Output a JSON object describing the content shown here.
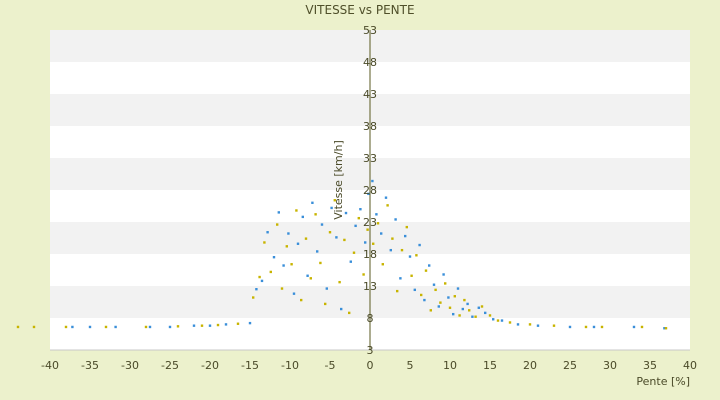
{
  "chart_data": {
    "type": "scatter",
    "title": "VITESSE vs PENTE",
    "xlabel": "Pente [%]",
    "ylabel": "Vitesse [km/h]",
    "xlim": [
      -40,
      40
    ],
    "ylim": [
      3,
      53
    ],
    "x_ticks": [
      -40,
      -35,
      -30,
      -25,
      -20,
      -15,
      -10,
      -5,
      0,
      5,
      10,
      15,
      20,
      25,
      30,
      35,
      40
    ],
    "y_ticks": [
      3,
      8,
      13,
      18,
      23,
      28,
      33,
      38,
      43,
      48,
      53
    ],
    "grid": "horizontal bands",
    "legend": "none",
    "colors": {
      "series_1": "#3a8fd9",
      "series_2": "#c8b400",
      "band_alt": "#f2f2f2",
      "plot_bg": "#ffffff",
      "axis": "#5a5a20"
    },
    "series": [
      {
        "points": [
          [
            -37.2,
            6.6
          ],
          [
            -35,
            6.6
          ],
          [
            -31.8,
            6.6
          ],
          [
            -27.5,
            6.6
          ],
          [
            -25,
            6.6
          ],
          [
            -22,
            6.8
          ],
          [
            -20,
            6.8
          ],
          [
            -18,
            7.0
          ],
          [
            -15,
            7.2
          ],
          [
            -14.2,
            12.5
          ],
          [
            -13.5,
            13.8
          ],
          [
            -12.8,
            21.4
          ],
          [
            -12,
            17.5
          ],
          [
            -11.4,
            24.5
          ],
          [
            -10.8,
            16.2
          ],
          [
            -10.2,
            21.2
          ],
          [
            -9.5,
            11.8
          ],
          [
            -9,
            19.6
          ],
          [
            -8.4,
            23.8
          ],
          [
            -7.8,
            14.6
          ],
          [
            -7.2,
            26.0
          ],
          [
            -6.6,
            18.4
          ],
          [
            -6,
            22.6
          ],
          [
            -5.4,
            12.6
          ],
          [
            -4.8,
            25.2
          ],
          [
            -4.2,
            20.6
          ],
          [
            -3.6,
            9.4
          ],
          [
            -3,
            24.4
          ],
          [
            -2.4,
            16.8
          ],
          [
            -1.8,
            22.4
          ],
          [
            -1.2,
            25.0
          ],
          [
            -0.6,
            19.8
          ],
          [
            -0.2,
            27.4
          ],
          [
            0.3,
            29.4
          ],
          [
            0.8,
            24.2
          ],
          [
            1.4,
            21.2
          ],
          [
            2,
            26.8
          ],
          [
            2.6,
            18.6
          ],
          [
            3.2,
            23.4
          ],
          [
            3.8,
            14.2
          ],
          [
            4.4,
            20.8
          ],
          [
            5,
            17.6
          ],
          [
            5.6,
            12.4
          ],
          [
            6.2,
            19.4
          ],
          [
            6.8,
            10.8
          ],
          [
            7.4,
            16.2
          ],
          [
            8,
            13.2
          ],
          [
            8.6,
            9.8
          ],
          [
            9.2,
            14.8
          ],
          [
            9.8,
            11.2
          ],
          [
            10.4,
            8.6
          ],
          [
            11,
            12.6
          ],
          [
            11.6,
            9.4
          ],
          [
            12.2,
            10.2
          ],
          [
            12.8,
            8.2
          ],
          [
            13.6,
            9.6
          ],
          [
            14.4,
            8.8
          ],
          [
            15.4,
            7.8
          ],
          [
            16.5,
            7.6
          ],
          [
            18.5,
            7.0
          ],
          [
            21,
            6.8
          ],
          [
            25,
            6.6
          ],
          [
            28,
            6.6
          ],
          [
            33,
            6.6
          ],
          [
            36.8,
            6.4
          ]
        ]
      },
      {
        "points": [
          [
            -44,
            6.6
          ],
          [
            -42,
            6.6
          ],
          [
            -38,
            6.6
          ],
          [
            -33,
            6.6
          ],
          [
            -28,
            6.6
          ],
          [
            -24,
            6.7
          ],
          [
            -21,
            6.8
          ],
          [
            -19,
            6.9
          ],
          [
            -16.5,
            7.1
          ],
          [
            -14.6,
            11.2
          ],
          [
            -13.8,
            14.4
          ],
          [
            -13.2,
            19.8
          ],
          [
            -12.4,
            15.2
          ],
          [
            -11.6,
            22.6
          ],
          [
            -11,
            12.6
          ],
          [
            -10.4,
            19.2
          ],
          [
            -9.8,
            16.4
          ],
          [
            -9.2,
            24.8
          ],
          [
            -8.6,
            10.8
          ],
          [
            -8,
            20.4
          ],
          [
            -7.4,
            14.2
          ],
          [
            -6.8,
            24.2
          ],
          [
            -6.2,
            16.6
          ],
          [
            -5.6,
            10.2
          ],
          [
            -5,
            21.4
          ],
          [
            -4.4,
            26.4
          ],
          [
            -3.8,
            13.6
          ],
          [
            -3.2,
            20.2
          ],
          [
            -2.6,
            8.8
          ],
          [
            -2,
            18.2
          ],
          [
            -1.4,
            23.6
          ],
          [
            -0.8,
            14.8
          ],
          [
            -0.3,
            21.8
          ],
          [
            0.4,
            19.6
          ],
          [
            1,
            22.8
          ],
          [
            1.6,
            16.4
          ],
          [
            2.2,
            25.6
          ],
          [
            2.8,
            20.4
          ],
          [
            3.4,
            12.2
          ],
          [
            4,
            18.6
          ],
          [
            4.6,
            22.2
          ],
          [
            5.2,
            14.6
          ],
          [
            5.8,
            17.8
          ],
          [
            6.4,
            11.6
          ],
          [
            7,
            15.4
          ],
          [
            7.6,
            9.2
          ],
          [
            8.2,
            12.4
          ],
          [
            8.8,
            10.4
          ],
          [
            9.4,
            13.4
          ],
          [
            10,
            9.6
          ],
          [
            10.6,
            11.4
          ],
          [
            11.2,
            8.4
          ],
          [
            11.8,
            10.8
          ],
          [
            12.4,
            9.2
          ],
          [
            13.2,
            8.2
          ],
          [
            14,
            9.8
          ],
          [
            15,
            8.4
          ],
          [
            16,
            7.6
          ],
          [
            17.5,
            7.3
          ],
          [
            20,
            7.0
          ],
          [
            23,
            6.8
          ],
          [
            27,
            6.6
          ],
          [
            29,
            6.6
          ],
          [
            34,
            6.6
          ],
          [
            37,
            6.4
          ]
        ]
      }
    ]
  }
}
